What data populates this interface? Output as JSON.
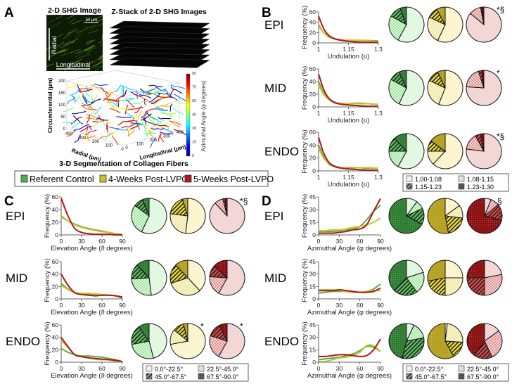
{
  "colors": {
    "control": "#4caf50",
    "wk4": "#c6c42c",
    "wk5": "#b01818"
  },
  "panel_a": {
    "letter": "A",
    "shg_title": "2-D SHG Image",
    "scale_bar": "50 μm",
    "radial_label": "Radial",
    "longitudinal_label": "Longitudinal",
    "zstack_title": "Z-Stack of 2-D SHG Images",
    "circ_axis": "Circumferential (μm)",
    "radial_axis": "Radial (μm)",
    "long_axis": "Longitudinal (μm)",
    "circ_ticks": [
      "0",
      "50",
      "100",
      "150",
      "200"
    ],
    "radial_ticks": [
      "400",
      "300",
      "200",
      "100",
      "0"
    ],
    "long_ticks": [
      "0",
      "100",
      "200",
      "300",
      "400"
    ],
    "colorbar_label": "Azimuthal Angle (φ degrees)",
    "colorbar_ticks": [
      "0",
      "15",
      "30",
      "45",
      "60",
      "75",
      "90"
    ],
    "caption": "3-D Segmentation of Collagen Fibers"
  },
  "legend": {
    "items": [
      {
        "label": "Referent  Control",
        "color": "#4caf50"
      },
      {
        "label": "4-Weeks Post-LVPO",
        "color": "#c6c42c"
      },
      {
        "label": "5-Weeks Post-LVPO",
        "color": "#b01818"
      }
    ]
  },
  "chart_data": [
    {
      "panel": "B",
      "type": "line",
      "xlabel": "Undulation (u)",
      "ylabel": "Frequency (%)",
      "xlim": [
        1,
        1.3
      ],
      "ylim": [
        0,
        60
      ],
      "xticks": [
        "1",
        "1.15",
        "1.3"
      ],
      "xtickvals": [
        1,
        1.15,
        1.3
      ],
      "yticks": [
        0,
        20,
        40,
        60
      ],
      "x": [
        1,
        1.025,
        1.05,
        1.075,
        1.1,
        1.15,
        1.2,
        1.25,
        1.3
      ],
      "pie_legend": [
        "1.00-1.08",
        "1.08-1.15",
        "1.15-1.23",
        "1.23-1.30"
      ],
      "rows": [
        {
          "label": "EPI",
          "series": [
            {
              "name": "Referent Control",
              "values": [
                35,
                20,
                12,
                8,
                6,
                5,
                5,
                4.5,
                4
              ]
            },
            {
              "name": "4-Weeks Post-LVPO",
              "values": [
                32,
                20,
                13,
                9,
                7,
                5,
                5,
                4,
                3
              ]
            },
            {
              "name": "5-Weeks Post-LVPO",
              "values": [
                52,
                28,
                15,
                9,
                6,
                3,
                1.5,
                1,
                1
              ]
            }
          ],
          "pies": [
            [
              58,
              25,
              11,
              6
            ],
            [
              57,
              25,
              10,
              8
            ],
            [
              86,
              11,
              1,
              2
            ]
          ],
          "marks": [
            "",
            "",
            "*§"
          ]
        },
        {
          "label": "MID",
          "series": [
            {
              "name": "Referent Control",
              "values": [
                40,
                22,
                12,
                7,
                5,
                5,
                6,
                5,
                4
              ]
            },
            {
              "name": "4-Weeks Post-LVPO",
              "values": [
                35,
                20,
                12,
                8,
                6,
                5,
                5,
                5,
                4
              ]
            },
            {
              "name": "5-Weeks Post-LVPO",
              "values": [
                52,
                28,
                14,
                8,
                5,
                3,
                2,
                1,
                1
              ]
            }
          ],
          "pies": [
            [
              57,
              26,
              10,
              7
            ],
            [
              56,
              26,
              11,
              7
            ],
            [
              76,
              19,
              3,
              2
            ]
          ],
          "marks": [
            "",
            "",
            "*"
          ]
        },
        {
          "label": "ENDO",
          "series": [
            {
              "name": "Referent Control",
              "values": [
                40,
                22,
                11,
                7,
                5,
                5,
                5,
                4,
                4
              ]
            },
            {
              "name": "4-Weeks Post-LVPO",
              "values": [
                35,
                20,
                12,
                8,
                6,
                4,
                5,
                5,
                4
              ]
            },
            {
              "name": "5-Weeks Post-LVPO",
              "values": [
                52,
                28,
                14,
                8,
                5,
                3,
                2,
                1,
                1
              ]
            }
          ],
          "pies": [
            [
              58,
              17,
              13,
              12
            ],
            [
              62,
              13,
              10,
              15
            ],
            [
              77,
              15,
              5,
              3
            ]
          ],
          "marks": [
            "",
            "",
            "*§"
          ]
        }
      ]
    },
    {
      "panel": "C",
      "type": "line",
      "xlabel": "Elevation Angle (ϑ degrees)",
      "ylabel": "Frequency (%)",
      "xlim": [
        0,
        90
      ],
      "ylim": [
        0,
        60
      ],
      "xticks": [
        "0",
        "30",
        "60",
        "90"
      ],
      "xtickvals": [
        0,
        30,
        60,
        90
      ],
      "yticks": [
        0,
        20,
        40,
        60
      ],
      "x": [
        0,
        10,
        20,
        30,
        40,
        50,
        60,
        70,
        80,
        90
      ],
      "pie_legend": [
        "0.0°-22.5°",
        "22.5°-45.0°",
        "45.0°-67.5°",
        "67.5°-90.0°"
      ],
      "rows": [
        {
          "label": "EPI",
          "series": [
            {
              "name": "Referent Control",
              "values": [
                30,
                22,
                17,
                13,
                10,
                8,
                6,
                4,
                2,
                1
              ]
            },
            {
              "name": "4-Weeks Post-LVPO",
              "values": [
                28,
                22,
                16,
                12,
                9,
                7,
                5,
                4,
                2,
                1
              ]
            },
            {
              "name": "5-Weeks Post-LVPO",
              "values": [
                58,
                30,
                10,
                4,
                2,
                1,
                1,
                1,
                0,
                0
              ]
            }
          ],
          "pies": [
            [
              57,
              28,
              9,
              6
            ],
            [
              52,
              25,
              18,
              5
            ],
            [
              88,
              8,
              2,
              2
            ]
          ],
          "marks": [
            "",
            "",
            "*§"
          ]
        },
        {
          "label": "MID",
          "series": [
            {
              "name": "Referent Control",
              "values": [
                25,
                16,
                10,
                8,
                7,
                6,
                6,
                6,
                5,
                1
              ]
            },
            {
              "name": "4-Weeks Post-LVPO",
              "values": [
                22,
                15,
                10,
                9,
                9,
                8,
                7,
                6,
                5,
                3
              ]
            },
            {
              "name": "5-Weeks Post-LVPO",
              "values": [
                40,
                22,
                10,
                7,
                6,
                5,
                6,
                6,
                5,
                3
              ]
            }
          ],
          "pies": [
            [
              48,
              26,
              14,
              12
            ],
            [
              38,
              32,
              18,
              12
            ],
            [
              58,
              18,
              11,
              13
            ]
          ],
          "marks": [
            "",
            "",
            ""
          ]
        },
        {
          "label": "ENDO",
          "series": [
            {
              "name": "Referent Control",
              "values": [
                22,
                16,
                12,
                10,
                10,
                9,
                8,
                6,
                4,
                1
              ]
            },
            {
              "name": "4-Weeks Post-LVPO",
              "values": [
                35,
                24,
                12,
                9,
                7,
                5,
                4,
                4,
                2,
                1
              ]
            },
            {
              "name": "5-Weeks Post-LVPO",
              "values": [
                40,
                25,
                12,
                9,
                7,
                6,
                5,
                4,
                3,
                1
              ]
            }
          ],
          "pies": [
            [
              46,
              26,
              18,
              10
            ],
            [
              72,
              14,
              10,
              4
            ],
            [
              58,
              22,
              13,
              7
            ]
          ],
          "marks": [
            "",
            "*",
            "*"
          ]
        }
      ]
    },
    {
      "panel": "D",
      "type": "line",
      "xlabel": "Azimuthal Angle (φ degrees)",
      "ylabel": "Frequency (%)",
      "xlim": [
        0,
        90
      ],
      "ylim": [
        0,
        45
      ],
      "xticks": [
        "0",
        "30",
        "60",
        "90"
      ],
      "xtickvals": [
        0,
        30,
        60,
        90
      ],
      "yticks": [
        0,
        15,
        30,
        45
      ],
      "x": [
        0,
        10,
        20,
        30,
        40,
        50,
        60,
        70,
        80,
        90
      ],
      "pie_legend": [
        "0.0°-22.5°",
        "22.5°-45.0°",
        "45.0°-67.5°",
        "67.5°-90.0°"
      ],
      "rows": [
        {
          "label": "EPI",
          "series": [
            {
              "name": "Referent Control",
              "values": [
                4,
                4,
                4,
                5,
                6,
                7,
                10,
                18,
                28,
                35
              ]
            },
            {
              "name": "4-Weeks Post-LVPO",
              "values": [
                5,
                5,
                6,
                6,
                7,
                9,
                10,
                12,
                15,
                20
              ]
            },
            {
              "name": "5-Weeks Post-LVPO",
              "values": [
                2,
                2,
                2,
                3,
                4,
                6,
                7,
                12,
                28,
                43
              ]
            }
          ],
          "pies": [
            [
              10,
              8,
              15,
              67
            ],
            [
              15,
              12,
              20,
              53
            ],
            [
              6,
              8,
              15,
              71
            ]
          ],
          "marks": [
            "",
            "",
            "§"
          ]
        },
        {
          "label": "MID",
          "series": [
            {
              "name": "Referent Control",
              "values": [
                7,
                8,
                9,
                9,
                9,
                8,
                8,
                9,
                12,
                18
              ]
            },
            {
              "name": "4-Weeks Post-LVPO",
              "values": [
                11,
                11,
                11,
                10,
                9,
                8,
                8,
                9,
                10,
                10
              ]
            },
            {
              "name": "5-Weeks Post-LVPO",
              "values": [
                10,
                10,
                10,
                11,
                10,
                9,
                8,
                8,
                9,
                13
              ]
            }
          ],
          "pies": [
            [
              20,
              20,
              22,
              38
            ],
            [
              25,
              25,
              22,
              28
            ],
            [
              22,
              28,
              25,
              25
            ]
          ],
          "marks": [
            "",
            "",
            ""
          ]
        },
        {
          "label": "ENDO",
          "series": [
            {
              "name": "Referent Control",
              "values": [
                3,
                4,
                5,
                6,
                8,
                10,
                14,
                19,
                18,
                13
              ]
            },
            {
              "name": "4-Weeks Post-LVPO",
              "values": [
                1,
                1,
                3,
                5,
                6,
                8,
                12,
                20,
                20,
                13
              ]
            },
            {
              "name": "5-Weeks Post-LVPO",
              "values": [
                7,
                7,
                8,
                9,
                9,
                8,
                7,
                8,
                15,
                28
              ]
            }
          ],
          "pies": [
            [
              7,
              15,
              32,
              46
            ],
            [
              2,
              24,
              16,
              58
            ],
            [
              15,
              28,
              17,
              40
            ]
          ],
          "marks": [
            "",
            "",
            ""
          ]
        }
      ]
    }
  ]
}
